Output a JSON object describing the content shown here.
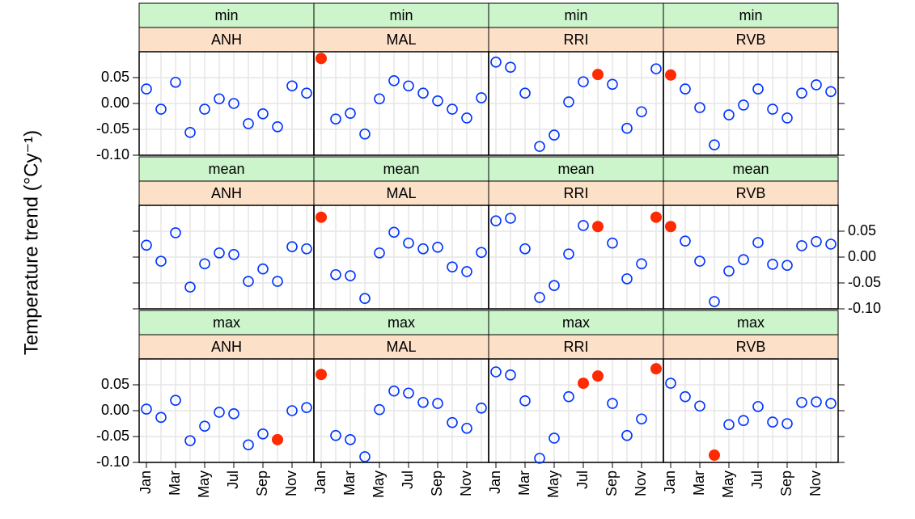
{
  "chart_data": {
    "type": "scatter",
    "ylabel": "Temperature trend (°Cy⁻¹)",
    "categories": [
      "Jan",
      null,
      "Mar",
      null,
      "May",
      null,
      "Jul",
      null,
      "Sep",
      null,
      "Nov",
      null
    ],
    "ylim": [
      -0.1,
      0.1
    ],
    "yticks": [
      {
        "value": -0.1,
        "label": "-0.10"
      },
      -0.05,
      {
        "value": 0,
        "label": "0.00"
      },
      0.05
    ],
    "grid": true,
    "open_color": "#0033ff",
    "significant_color": "#ff2a00",
    "strip_colors": [
      "#ccf5cc",
      "#fce0c8"
    ],
    "panels": [
      {
        "stat": "min",
        "site": "ANH",
        "values": [
          0.028,
          -0.011,
          0.041,
          -0.056,
          -0.011,
          0.009,
          0.0,
          -0.039,
          -0.02,
          -0.045,
          0.034,
          0.02
        ],
        "significant": [
          false,
          false,
          false,
          false,
          false,
          false,
          false,
          false,
          false,
          false,
          false,
          false
        ]
      },
      {
        "stat": "min",
        "site": "MAL",
        "values": [
          0.087,
          -0.03,
          -0.019,
          -0.059,
          0.009,
          0.044,
          0.034,
          0.02,
          0.005,
          -0.011,
          -0.028,
          0.011
        ],
        "significant": [
          true,
          false,
          false,
          false,
          false,
          false,
          false,
          false,
          false,
          false,
          false,
          false
        ]
      },
      {
        "stat": "min",
        "site": "RRI",
        "values": [
          0.08,
          0.07,
          0.02,
          -0.083,
          -0.061,
          0.003,
          0.042,
          0.056,
          0.037,
          -0.048,
          -0.016,
          0.067
        ],
        "significant": [
          false,
          false,
          false,
          false,
          false,
          false,
          false,
          true,
          false,
          false,
          false,
          false
        ]
      },
      {
        "stat": "min",
        "site": "RVB",
        "values": [
          0.055,
          0.028,
          -0.008,
          -0.08,
          -0.022,
          -0.003,
          0.028,
          -0.011,
          -0.028,
          0.02,
          0.036,
          0.023
        ],
        "significant": [
          true,
          false,
          false,
          false,
          false,
          false,
          false,
          false,
          false,
          false,
          false,
          false
        ]
      },
      {
        "stat": "mean",
        "site": "ANH",
        "values": [
          0.023,
          -0.008,
          0.047,
          -0.058,
          -0.013,
          0.008,
          0.005,
          -0.047,
          -0.023,
          -0.047,
          0.02,
          0.016
        ],
        "significant": [
          false,
          false,
          false,
          false,
          false,
          false,
          false,
          false,
          false,
          false,
          false,
          false
        ]
      },
      {
        "stat": "mean",
        "site": "MAL",
        "values": [
          0.077,
          -0.034,
          -0.036,
          -0.08,
          0.008,
          0.048,
          0.027,
          0.016,
          0.019,
          -0.019,
          -0.028,
          0.009
        ],
        "significant": [
          true,
          false,
          false,
          false,
          false,
          false,
          false,
          false,
          false,
          false,
          false,
          false
        ]
      },
      {
        "stat": "mean",
        "site": "RRI",
        "values": [
          0.07,
          0.075,
          0.016,
          -0.078,
          -0.055,
          0.006,
          0.061,
          0.059,
          0.027,
          -0.042,
          -0.013,
          0.077
        ],
        "significant": [
          false,
          false,
          false,
          false,
          false,
          false,
          false,
          true,
          false,
          false,
          false,
          true
        ]
      },
      {
        "stat": "mean",
        "site": "RVB",
        "values": [
          0.059,
          0.031,
          -0.008,
          -0.086,
          -0.027,
          -0.005,
          0.028,
          -0.014,
          -0.016,
          0.022,
          0.03,
          0.025
        ],
        "significant": [
          true,
          false,
          false,
          false,
          false,
          false,
          false,
          false,
          false,
          false,
          false,
          false
        ]
      },
      {
        "stat": "max",
        "site": "ANH",
        "values": [
          0.003,
          -0.013,
          0.02,
          -0.058,
          -0.03,
          -0.003,
          -0.006,
          -0.066,
          -0.045,
          -0.056,
          0.0,
          0.006
        ],
        "significant": [
          false,
          false,
          false,
          false,
          false,
          false,
          false,
          false,
          false,
          true,
          false,
          false
        ]
      },
      {
        "stat": "max",
        "site": "MAL",
        "values": [
          0.07,
          -0.048,
          -0.056,
          -0.089,
          0.002,
          0.038,
          0.034,
          0.016,
          0.014,
          -0.023,
          -0.034,
          0.005
        ],
        "significant": [
          true,
          false,
          false,
          false,
          false,
          false,
          false,
          false,
          false,
          false,
          false,
          false
        ]
      },
      {
        "stat": "max",
        "site": "RRI",
        "values": [
          0.075,
          0.069,
          0.019,
          -0.092,
          -0.053,
          0.027,
          0.053,
          0.067,
          0.014,
          -0.048,
          -0.016,
          0.081
        ],
        "significant": [
          false,
          false,
          false,
          false,
          false,
          false,
          true,
          true,
          false,
          false,
          false,
          true
        ]
      },
      {
        "stat": "max",
        "site": "RVB",
        "values": [
          0.053,
          0.027,
          0.009,
          -0.086,
          -0.027,
          -0.019,
          0.008,
          -0.022,
          -0.025,
          0.016,
          0.017,
          0.014
        ],
        "significant": [
          false,
          false,
          false,
          true,
          false,
          false,
          false,
          false,
          false,
          false,
          false,
          false
        ]
      }
    ]
  }
}
